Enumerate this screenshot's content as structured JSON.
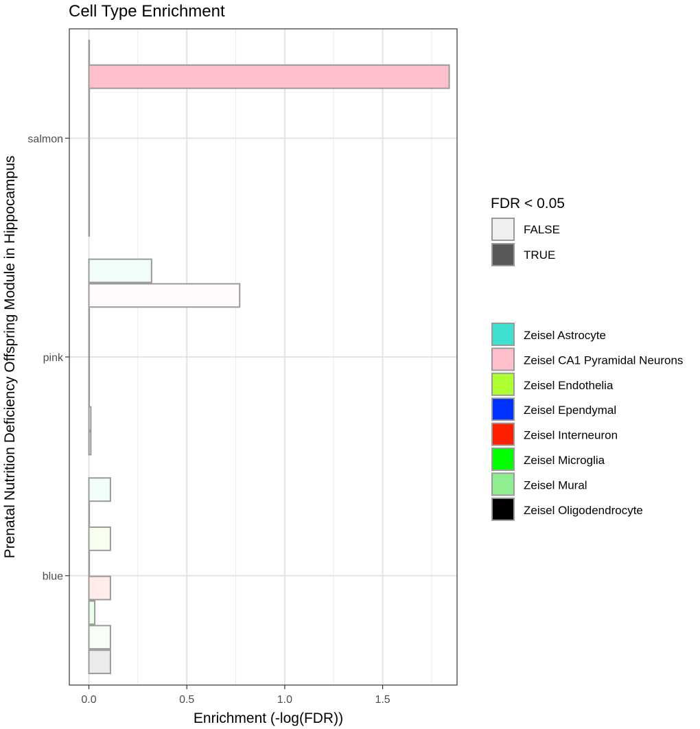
{
  "chart_data": {
    "type": "bar",
    "orientation": "horizontal",
    "title": "Cell Type Enrichment",
    "xlabel": "Enrichment (-log(FDR))",
    "ylabel": "Prenatal Nutrition Deficiency Offspring Module in Hippocampus",
    "xlim": [
      -0.1,
      1.88
    ],
    "x_ticks": [
      0.0,
      0.5,
      1.0,
      1.5
    ],
    "x_tick_labels": [
      "0.0",
      "0.5",
      "1.0",
      "1.5"
    ],
    "categories": [
      "blue",
      "pink",
      "salmon"
    ],
    "grid": true,
    "series_order": [
      "Zeisel Oligodendrocyte",
      "Zeisel Mural",
      "Zeisel Microglia",
      "Zeisel Interneuron",
      "Zeisel Ependymal",
      "Zeisel Endothelia",
      "Zeisel CA1 Pyramidal Neurons",
      "Zeisel Astrocyte"
    ],
    "series": [
      {
        "name": "Zeisel Astrocyte",
        "color": "#40E0D0",
        "values": [
          0.11,
          0.32,
          0.0
        ],
        "fdr_lt_005": [
          false,
          false,
          false
        ]
      },
      {
        "name": "Zeisel CA1 Pyramidal Neurons",
        "color": "#FFC0CB",
        "values": [
          0.0,
          0.77,
          1.84
        ],
        "fdr_lt_005": [
          false,
          false,
          true
        ]
      },
      {
        "name": "Zeisel Endothelia",
        "color": "#ADFF2F",
        "values": [
          0.11,
          0.0,
          0.0
        ],
        "fdr_lt_005": [
          false,
          false,
          false
        ]
      },
      {
        "name": "Zeisel Ependymal",
        "color": "#0033FF",
        "values": [
          0.0,
          0.0,
          0.0
        ],
        "fdr_lt_005": [
          false,
          false,
          false
        ]
      },
      {
        "name": "Zeisel Interneuron",
        "color": "#FF2000",
        "values": [
          0.11,
          0.0,
          0.0
        ],
        "fdr_lt_005": [
          false,
          false,
          false
        ]
      },
      {
        "name": "Zeisel Microglia",
        "color": "#00FF00",
        "values": [
          0.03,
          0.0,
          0.0
        ],
        "fdr_lt_005": [
          false,
          false,
          false
        ]
      },
      {
        "name": "Zeisel Mural",
        "color": "#90EE90",
        "values": [
          0.11,
          0.01,
          0.0
        ],
        "fdr_lt_005": [
          false,
          false,
          false
        ]
      },
      {
        "name": "Zeisel Oligodendrocyte",
        "color": "#000000",
        "values": [
          0.11,
          0.01,
          0.0
        ],
        "fdr_lt_005": [
          false,
          false,
          false
        ]
      }
    ],
    "legend_fdr": {
      "title": "FDR < 0.05",
      "entries": [
        {
          "label": "FALSE",
          "fill": "#F0F0F0"
        },
        {
          "label": "TRUE",
          "fill": "#595959"
        }
      ]
    },
    "legend_cell_type": {
      "entries": [
        {
          "label": "Zeisel Astrocyte",
          "color": "#40E0D0"
        },
        {
          "label": "Zeisel CA1 Pyramidal Neurons",
          "color": "#FFC0CB"
        },
        {
          "label": "Zeisel Endothelia",
          "color": "#ADFF2F"
        },
        {
          "label": "Zeisel Ependymal",
          "color": "#0033FF"
        },
        {
          "label": "Zeisel Interneuron",
          "color": "#FF2000"
        },
        {
          "label": "Zeisel Microglia",
          "color": "#00FF00"
        },
        {
          "label": "Zeisel Mural",
          "color": "#90EE90"
        },
        {
          "label": "Zeisel Oligodendrocyte",
          "color": "#000000"
        }
      ]
    }
  }
}
